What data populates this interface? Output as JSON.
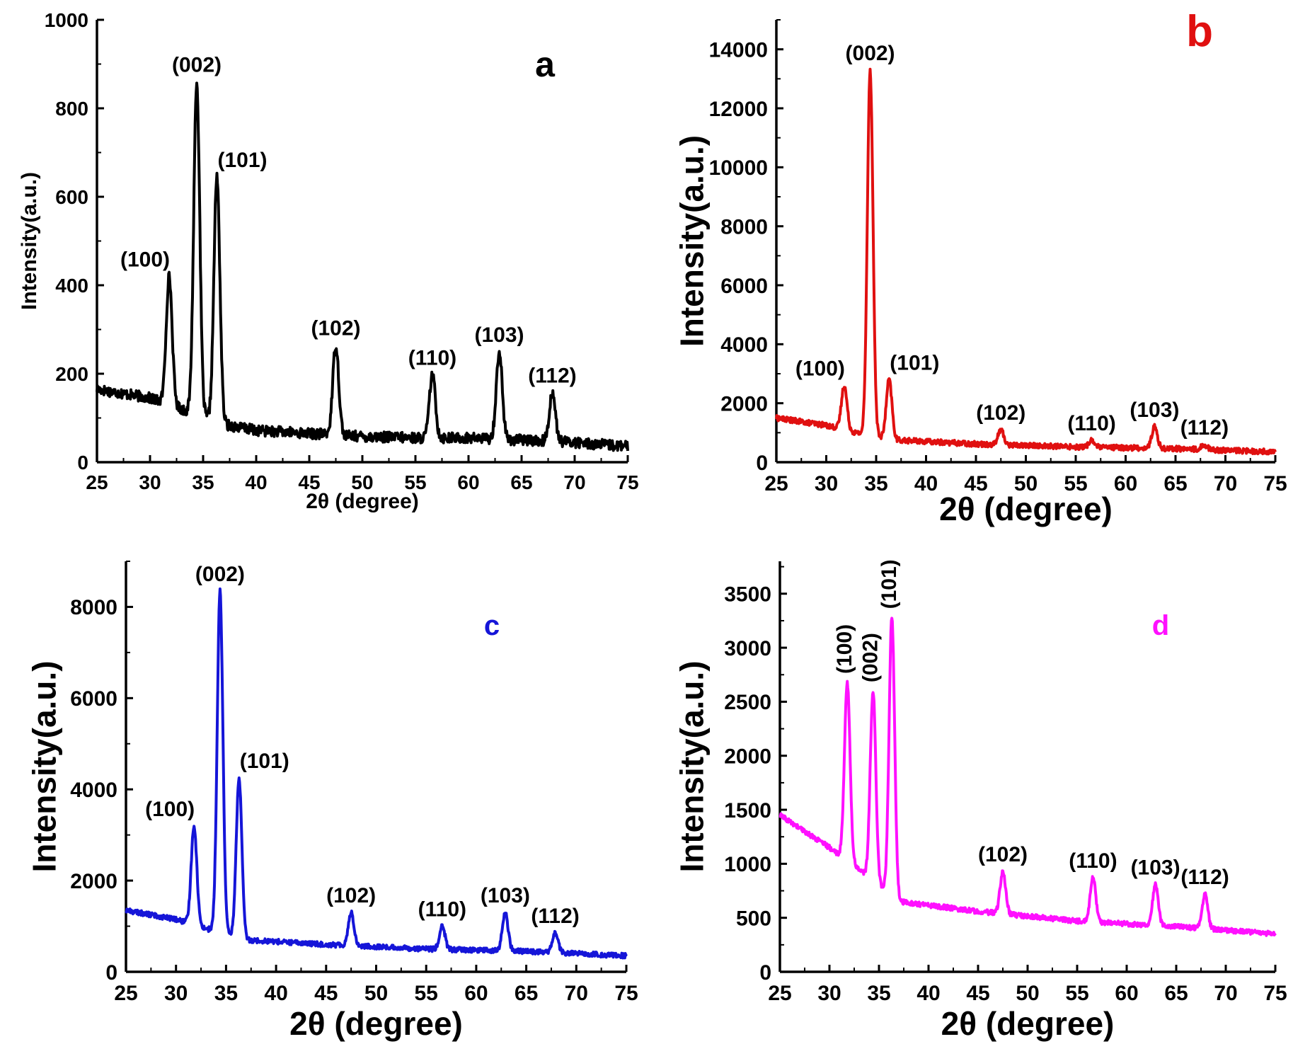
{
  "figure": {
    "background": "#ffffff"
  },
  "chart_data": [
    {
      "panel_label": "a",
      "type": "line",
      "color": "#000000",
      "xlabel": "2θ (degree)",
      "ylabel": "Intensity(a.u.)",
      "xlim": [
        25,
        75
      ],
      "ylim": [
        0,
        1000
      ],
      "xticks": [
        25,
        30,
        35,
        40,
        45,
        50,
        55,
        60,
        65,
        70,
        75
      ],
      "yticks": [
        0,
        200,
        400,
        600,
        800,
        1000
      ],
      "ytick_labels": [
        "0",
        "200",
        "400",
        "600",
        "800",
        "1000"
      ],
      "baseline": [
        [
          25,
          165
        ],
        [
          30,
          145
        ],
        [
          33,
          120
        ],
        [
          37,
          85
        ],
        [
          40,
          72
        ],
        [
          45,
          65
        ],
        [
          50,
          58
        ],
        [
          55,
          55
        ],
        [
          60,
          55
        ],
        [
          65,
          50
        ],
        [
          70,
          45
        ],
        [
          75,
          35
        ]
      ],
      "peaks": [
        {
          "x": 31.8,
          "y": 420,
          "label": "(100)"
        },
        {
          "x": 34.4,
          "y": 860,
          "label": "(002)"
        },
        {
          "x": 36.3,
          "y": 645,
          "label": "(101)"
        },
        {
          "x": 47.5,
          "y": 265,
          "label": "(102)"
        },
        {
          "x": 56.6,
          "y": 198,
          "label": "(110)"
        },
        {
          "x": 62.9,
          "y": 250,
          "label": "(103)"
        },
        {
          "x": 67.9,
          "y": 158,
          "label": "(112)"
        }
      ]
    },
    {
      "panel_label": "b",
      "type": "line",
      "color": "#e01010",
      "xlabel": "2θ (degree)",
      "ylabel": "Intensity(a.u.)",
      "xlim": [
        25,
        75
      ],
      "ylim": [
        0,
        15000
      ],
      "xticks": [
        25,
        30,
        35,
        40,
        45,
        50,
        55,
        60,
        65,
        70,
        75
      ],
      "yticks": [
        0,
        2000,
        4000,
        6000,
        8000,
        10000,
        12000,
        14000
      ],
      "ytick_labels": [
        "0",
        "2000",
        "4000",
        "6000",
        "8000",
        "10000",
        "12000",
        "14000"
      ],
      "baseline": [
        [
          25,
          1500
        ],
        [
          30,
          1250
        ],
        [
          33,
          1000
        ],
        [
          37,
          750
        ],
        [
          45,
          620
        ],
        [
          55,
          520
        ],
        [
          65,
          460
        ],
        [
          75,
          350
        ]
      ],
      "peaks": [
        {
          "x": 31.8,
          "y": 2600,
          "label": "(100)"
        },
        {
          "x": 34.4,
          "y": 13300,
          "label": "(002)"
        },
        {
          "x": 36.3,
          "y": 2800,
          "label": "(101)"
        },
        {
          "x": 47.5,
          "y": 1100,
          "label": "(102)"
        },
        {
          "x": 56.6,
          "y": 750,
          "label": "(110)"
        },
        {
          "x": 62.9,
          "y": 1200,
          "label": "(103)"
        },
        {
          "x": 67.9,
          "y": 600,
          "label": "(112)"
        }
      ]
    },
    {
      "panel_label": "c",
      "type": "line",
      "color": "#1515d8",
      "xlabel": "2θ (degree)",
      "ylabel": "Intensity(a.u.)",
      "xlim": [
        25,
        75
      ],
      "ylim": [
        0,
        9000
      ],
      "xticks": [
        25,
        30,
        35,
        40,
        45,
        50,
        55,
        60,
        65,
        70,
        75
      ],
      "yticks": [
        0,
        2000,
        4000,
        6000,
        8000
      ],
      "ytick_labels": [
        "0",
        "2000",
        "4000",
        "6000",
        "8000"
      ],
      "baseline": [
        [
          25,
          1350
        ],
        [
          30,
          1150
        ],
        [
          33,
          950
        ],
        [
          37,
          700
        ],
        [
          45,
          600
        ],
        [
          55,
          500
        ],
        [
          65,
          450
        ],
        [
          75,
          350
        ]
      ],
      "peaks": [
        {
          "x": 31.8,
          "y": 3200,
          "label": "(100)"
        },
        {
          "x": 34.4,
          "y": 8350,
          "label": "(002)"
        },
        {
          "x": 36.3,
          "y": 4250,
          "label": "(101)"
        },
        {
          "x": 47.5,
          "y": 1300,
          "label": "(102)"
        },
        {
          "x": 56.6,
          "y": 1000,
          "label": "(110)"
        },
        {
          "x": 62.9,
          "y": 1300,
          "label": "(103)"
        },
        {
          "x": 67.9,
          "y": 850,
          "label": "(112)"
        }
      ]
    },
    {
      "panel_label": "d",
      "type": "line",
      "color": "#ff10ff",
      "xlabel": "2θ (degree)",
      "ylabel": "Intensity(a.u.)",
      "xlim": [
        25,
        75
      ],
      "ylim": [
        0,
        3800
      ],
      "xticks": [
        25,
        30,
        35,
        40,
        45,
        50,
        55,
        60,
        65,
        70,
        75
      ],
      "yticks": [
        0,
        500,
        1000,
        1500,
        2000,
        2500,
        3000,
        3500
      ],
      "ytick_labels": [
        "0",
        "500",
        "1000",
        "1500",
        "2000",
        "2500",
        "3000",
        "3500"
      ],
      "baseline": [
        [
          25,
          1450
        ],
        [
          30,
          1150
        ],
        [
          33,
          950
        ],
        [
          37,
          650
        ],
        [
          45,
          560
        ],
        [
          55,
          470
        ],
        [
          65,
          420
        ],
        [
          75,
          350
        ]
      ],
      "peaks": [
        {
          "x": 31.8,
          "y": 2680,
          "label": "(100)"
        },
        {
          "x": 34.4,
          "y": 2600,
          "label": "(002)"
        },
        {
          "x": 36.3,
          "y": 3280,
          "label": "(101)"
        },
        {
          "x": 47.5,
          "y": 930,
          "label": "(102)"
        },
        {
          "x": 56.6,
          "y": 870,
          "label": "(110)"
        },
        {
          "x": 62.9,
          "y": 810,
          "label": "(103)"
        },
        {
          "x": 67.9,
          "y": 720,
          "label": "(112)"
        }
      ]
    }
  ]
}
